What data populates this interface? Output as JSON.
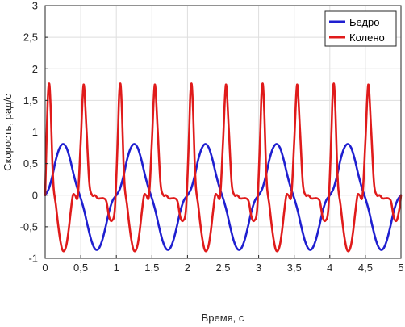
{
  "chart_data": {
    "type": "line",
    "title": "",
    "xlabel": "Время, с",
    "ylabel": "Скорость, рад/с",
    "xlim": [
      0,
      5
    ],
    "ylim": [
      -1,
      3
    ],
    "grid": true,
    "legend_position": "top-right",
    "x_ticks": [
      0,
      0.5,
      1,
      1.5,
      2,
      2.5,
      3,
      3.5,
      4,
      4.5,
      5
    ],
    "x_tick_labels": [
      "0",
      "0,5",
      "1",
      "1,5",
      "2",
      "2,5",
      "3",
      "3,5",
      "4",
      "4,5",
      "5"
    ],
    "y_ticks": [
      -1,
      -0.5,
      0,
      0.5,
      1,
      1.5,
      2,
      2.5,
      3
    ],
    "y_tick_labels": [
      "-1",
      "-0,5",
      "0",
      "0,5",
      "1",
      "1,5",
      "2",
      "2,5",
      "3"
    ],
    "series": [
      {
        "name": "Бедро",
        "color": "#1f1fd0",
        "x": [
          0,
          0.05,
          0.1,
          0.15,
          0.2,
          0.25,
          0.3,
          0.35,
          0.4,
          0.45,
          0.5,
          0.55,
          0.6,
          0.65,
          0.7,
          0.75,
          0.8,
          0.85,
          0.9,
          0.95,
          1.0,
          1.05,
          1.1,
          1.15,
          1.2,
          1.25,
          1.3,
          1.35,
          1.4,
          1.45,
          1.5,
          1.55,
          1.6,
          1.65,
          1.7,
          1.75,
          1.8,
          1.85,
          1.9,
          1.95,
          2.0,
          2.05,
          2.1,
          2.15,
          2.2,
          2.25,
          2.3,
          2.35,
          2.4,
          2.45,
          2.5,
          2.55,
          2.6,
          2.65,
          2.7,
          2.75,
          2.8,
          2.85,
          2.9,
          2.95,
          3.0,
          3.05,
          3.1,
          3.15,
          3.2,
          3.25,
          3.3,
          3.35,
          3.4,
          3.45,
          3.5,
          3.55,
          3.6,
          3.65,
          3.7,
          3.75,
          3.8,
          3.85,
          3.9,
          3.95,
          4.0,
          4.05,
          4.1,
          4.15,
          4.2,
          4.25,
          4.3,
          4.35,
          4.4,
          4.45,
          4.5,
          4.55,
          4.6,
          4.65,
          4.7,
          4.75,
          4.8,
          4.85,
          4.9,
          4.95,
          5.0
        ],
        "values": [
          0.0,
          0.1,
          0.3,
          0.56,
          0.74,
          0.81,
          0.75,
          0.57,
          0.33,
          0.12,
          -0.05,
          -0.25,
          -0.5,
          -0.72,
          -0.85,
          -0.85,
          -0.72,
          -0.5,
          -0.25,
          -0.08,
          0.0,
          0.1,
          0.3,
          0.56,
          0.74,
          0.81,
          0.75,
          0.57,
          0.33,
          0.12,
          -0.05,
          -0.25,
          -0.5,
          -0.72,
          -0.85,
          -0.85,
          -0.72,
          -0.5,
          -0.25,
          -0.08,
          0.0,
          0.1,
          0.3,
          0.56,
          0.74,
          0.81,
          0.75,
          0.57,
          0.33,
          0.12,
          -0.05,
          -0.25,
          -0.5,
          -0.72,
          -0.85,
          -0.85,
          -0.72,
          -0.5,
          -0.25,
          -0.08,
          0.0,
          0.1,
          0.3,
          0.56,
          0.74,
          0.81,
          0.75,
          0.57,
          0.33,
          0.12,
          -0.05,
          -0.25,
          -0.5,
          -0.72,
          -0.85,
          -0.85,
          -0.72,
          -0.5,
          -0.25,
          -0.08,
          0.0,
          0.1,
          0.3,
          0.56,
          0.74,
          0.81,
          0.75,
          0.57,
          0.33,
          0.12,
          -0.05,
          -0.25,
          -0.5,
          -0.72,
          -0.85,
          -0.85,
          -0.72,
          -0.5,
          -0.25,
          -0.08,
          0.0
        ]
      },
      {
        "name": "Колено",
        "color": "#e01b1b",
        "x": [
          0,
          0.02,
          0.04,
          0.06,
          0.08,
          0.1,
          0.12,
          0.15,
          0.18,
          0.21,
          0.24,
          0.27,
          0.3,
          0.33,
          0.36,
          0.39,
          0.42,
          0.46,
          0.5,
          0.54,
          0.58,
          0.62,
          0.66,
          0.7,
          0.74,
          0.78,
          0.82,
          0.86,
          0.9,
          0.94,
          0.98,
          1.02,
          1.04,
          1.06,
          1.08,
          1.1,
          1.12,
          1.15,
          1.18,
          1.21,
          1.24,
          1.27,
          1.3,
          1.33,
          1.36,
          1.39,
          1.42,
          1.46,
          1.5,
          1.54,
          1.58,
          1.62,
          1.66,
          1.7,
          1.74,
          1.78,
          1.82,
          1.86,
          1.9,
          1.94,
          1.98,
          2.02,
          2.04,
          2.06,
          2.08,
          2.1,
          2.12,
          2.15,
          2.18,
          2.21,
          2.24,
          2.27,
          2.3,
          2.33,
          2.36,
          2.39,
          2.42,
          2.46,
          2.5,
          2.54,
          2.58,
          2.62,
          2.66,
          2.7,
          2.74,
          2.78,
          2.82,
          2.86,
          2.9,
          2.94,
          2.98,
          3.02,
          3.04,
          3.06,
          3.08,
          3.1,
          3.12,
          3.15,
          3.18,
          3.21,
          3.24,
          3.27,
          3.3,
          3.33,
          3.36,
          3.39,
          3.42,
          3.46,
          3.5,
          3.54,
          3.58,
          3.62,
          3.66,
          3.7,
          3.74,
          3.78,
          3.82,
          3.86,
          3.9,
          3.94,
          3.98,
          4.02,
          4.04,
          4.06,
          4.08,
          4.1,
          4.12,
          4.15,
          4.18,
          4.21,
          4.24,
          4.27,
          4.3,
          4.33,
          4.36,
          4.39,
          4.42,
          4.46,
          4.5,
          4.54,
          4.58,
          4.62,
          4.66,
          4.7,
          4.74,
          4.78,
          4.82,
          4.86,
          4.9,
          4.94,
          4.98,
          5.0
        ],
        "values": [
          0.0,
          0.9,
          1.6,
          1.75,
          1.3,
          0.55,
          0.1,
          -0.15,
          -0.45,
          -0.7,
          -0.86,
          -0.88,
          -0.78,
          -0.55,
          -0.25,
          0.0,
          0.0,
          0.0,
          0.85,
          1.75,
          1.05,
          0.2,
          0.0,
          0.0,
          -0.05,
          -0.05,
          -0.05,
          -0.1,
          -0.35,
          -0.4,
          -0.2,
          0.9,
          1.6,
          1.75,
          1.3,
          0.55,
          0.1,
          -0.15,
          -0.45,
          -0.7,
          -0.86,
          -0.88,
          -0.78,
          -0.55,
          -0.25,
          0.0,
          0.0,
          0.0,
          0.85,
          1.75,
          1.05,
          0.2,
          0.0,
          0.0,
          -0.05,
          -0.05,
          -0.05,
          -0.1,
          -0.35,
          -0.4,
          -0.2,
          0.9,
          1.6,
          1.75,
          1.3,
          0.55,
          0.1,
          -0.15,
          -0.45,
          -0.7,
          -0.86,
          -0.88,
          -0.78,
          -0.55,
          -0.25,
          0.0,
          0.0,
          0.0,
          0.85,
          1.75,
          1.05,
          0.2,
          0.0,
          0.0,
          -0.05,
          -0.05,
          -0.05,
          -0.1,
          -0.35,
          -0.4,
          -0.2,
          0.9,
          1.6,
          1.75,
          1.3,
          0.55,
          0.1,
          -0.15,
          -0.45,
          -0.7,
          -0.86,
          -0.88,
          -0.78,
          -0.55,
          -0.25,
          0.0,
          0.0,
          0.0,
          0.85,
          1.75,
          1.05,
          0.2,
          0.0,
          0.0,
          -0.05,
          -0.05,
          -0.05,
          -0.1,
          -0.35,
          -0.4,
          -0.2,
          0.9,
          1.6,
          1.75,
          1.3,
          0.55,
          0.1,
          -0.15,
          -0.45,
          -0.7,
          -0.86,
          -0.88,
          -0.78,
          -0.55,
          -0.25,
          0.0,
          0.0,
          0.0,
          0.85,
          1.75,
          1.05,
          0.2,
          0.0,
          0.0,
          -0.05,
          -0.05,
          -0.05,
          -0.1,
          -0.35,
          -0.4,
          -0.2,
          0.0
        ]
      }
    ]
  }
}
